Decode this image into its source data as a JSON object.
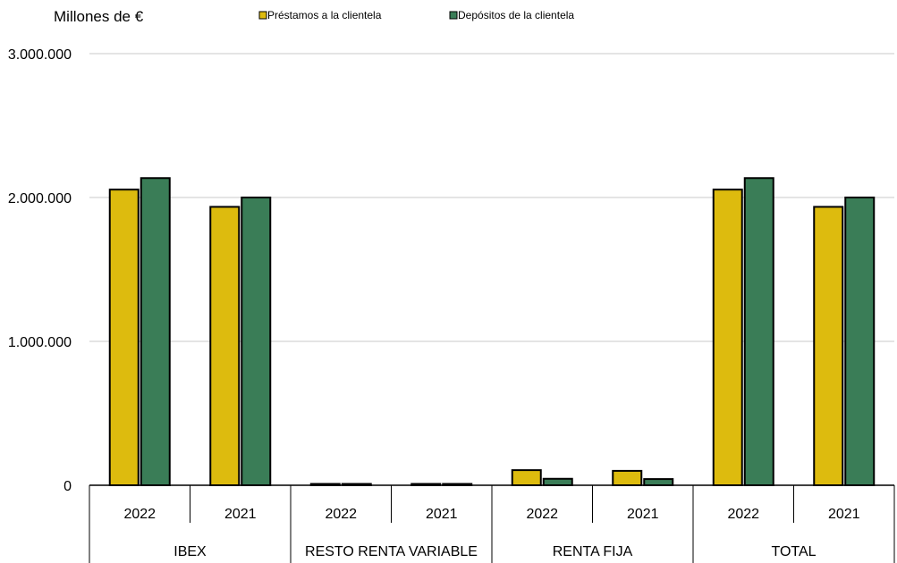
{
  "chart_data": {
    "type": "bar",
    "unit_label": "Millones de €",
    "legend_position": "top",
    "grid": true,
    "ylim": [
      0,
      3000000
    ],
    "yticks": [
      0,
      1000000,
      2000000,
      3000000
    ],
    "ytick_labels": [
      "0",
      "1.000.000",
      "2.000.000",
      "3.000.000"
    ],
    "groups": [
      {
        "label": "IBEX",
        "categories": [
          "2022",
          "2021"
        ]
      },
      {
        "label": "RESTO RENTA VARIABLE",
        "categories": [
          "2022",
          "2021"
        ]
      },
      {
        "label": "RENTA FIJA",
        "categories": [
          "2022",
          "2021"
        ]
      },
      {
        "label": "TOTAL",
        "categories": [
          "2022",
          "2021"
        ]
      }
    ],
    "series": [
      {
        "name": "Préstamos a la clientela",
        "color": "#DDBB0E",
        "values": [
          2055000,
          1935000,
          4000,
          4000,
          105000,
          100000,
          2055000,
          1935000
        ]
      },
      {
        "name": "Depósitos de la clientela",
        "color": "#3A7D57",
        "values": [
          2135000,
          2000000,
          4000,
          4000,
          45000,
          43000,
          2135000,
          2000000
        ]
      }
    ]
  }
}
